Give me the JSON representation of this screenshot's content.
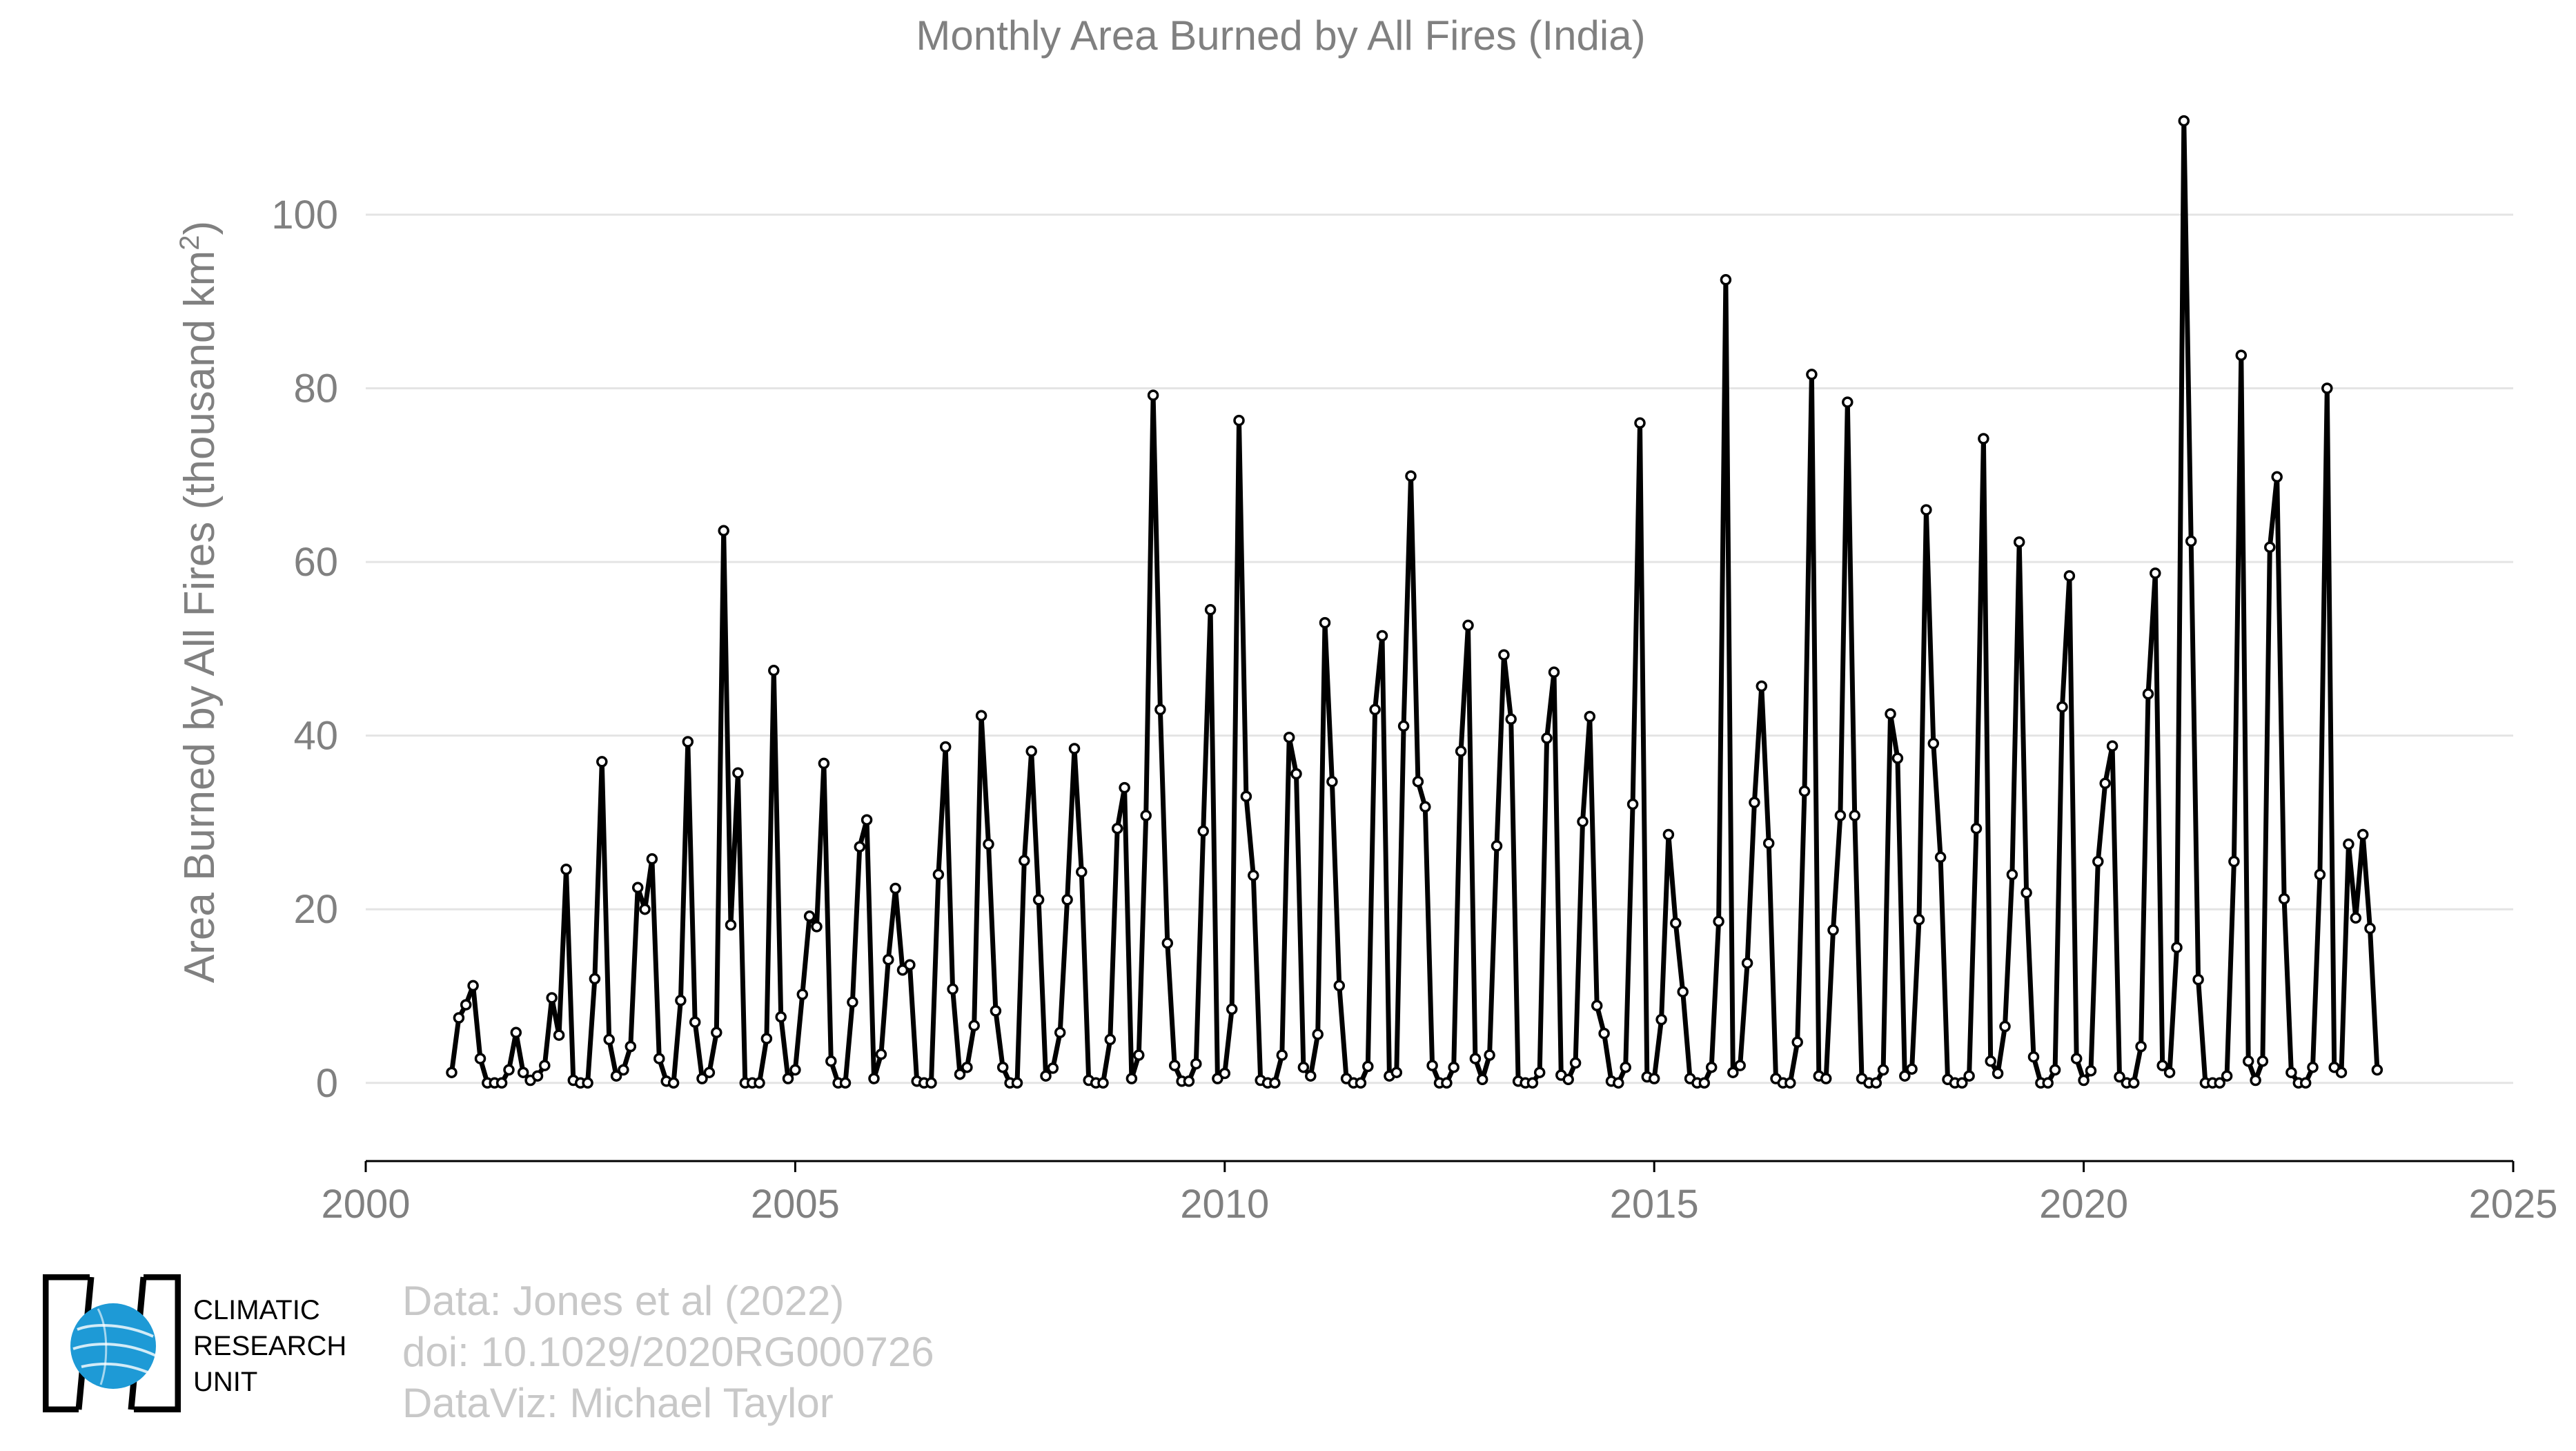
{
  "chart_data": {
    "type": "line",
    "title": "Monthly Area Burned by All Fires (India)",
    "xlabel": "",
    "ylabel": "Area Burned by All Fires (thousand km",
    "ylabel_sup": "2",
    "ylabel_end": ")",
    "xlim": [
      2000,
      2025
    ],
    "ylim": [
      -9,
      112
    ],
    "xticks": [
      2000,
      2005,
      2010,
      2015,
      2020,
      2025
    ],
    "yticks": [
      0,
      20,
      40,
      60,
      80,
      100
    ],
    "grid": "horizontal",
    "line_color": "#000000",
    "marker_fill": "#ffffff",
    "start_year": 2001,
    "values": [
      1.2,
      7.5,
      9,
      11.2,
      2.8,
      0,
      0,
      0,
      1.5,
      5.8,
      1.2,
      0.3,
      0.8,
      2,
      9.8,
      5.5,
      24.6,
      0.3,
      0,
      0,
      12,
      37,
      5,
      0.8,
      1.5,
      4.2,
      22.5,
      20,
      25.8,
      2.8,
      0.2,
      0,
      9.5,
      39.3,
      7,
      0.5,
      1.2,
      5.8,
      63.6,
      18.2,
      35.7,
      0,
      0,
      0,
      5.1,
      47.5,
      7.6,
      0.5,
      1.5,
      10.2,
      19.2,
      18,
      36.8,
      2.5,
      0,
      0,
      9.3,
      27.2,
      30.3,
      0.5,
      3.3,
      14.2,
      22.4,
      13,
      13.6,
      0.2,
      0,
      0,
      24,
      38.7,
      10.8,
      1,
      1.8,
      6.6,
      42.3,
      27.5,
      8.3,
      1.8,
      0,
      0,
      25.6,
      38.2,
      21.1,
      0.8,
      1.7,
      5.8,
      21.1,
      38.5,
      24.3,
      0.3,
      0,
      0,
      5,
      29.3,
      34,
      0.5,
      3.2,
      30.8,
      79.2,
      43,
      16.1,
      2,
      0.2,
      0.2,
      2.2,
      29,
      54.5,
      0.5,
      1.1,
      8.5,
      76.3,
      33,
      23.9,
      0.3,
      0,
      0,
      3.2,
      39.8,
      35.6,
      1.8,
      0.8,
      5.6,
      53,
      34.7,
      11.2,
      0.5,
      0,
      0,
      1.9,
      43,
      51.5,
      0.8,
      1.2,
      41.1,
      69.9,
      34.7,
      31.8,
      2,
      0,
      0,
      1.8,
      38.2,
      52.7,
      2.8,
      0.4,
      3.2,
      27.3,
      49.3,
      41.9,
      0.2,
      0,
      0,
      1.2,
      39.7,
      47.3,
      0.9,
      0.4,
      2.3,
      30.1,
      42.2,
      8.9,
      5.7,
      0.2,
      0,
      1.8,
      32.1,
      76,
      0.7,
      0.5,
      7.3,
      28.6,
      18.4,
      10.5,
      0.5,
      0,
      0,
      1.8,
      18.6,
      92.5,
      1.2,
      2,
      13.8,
      32.3,
      45.7,
      27.6,
      0.5,
      0,
      0,
      4.7,
      33.6,
      81.6,
      0.8,
      0.5,
      17.6,
      30.8,
      78.4,
      30.8,
      0.5,
      0,
      0,
      1.5,
      42.5,
      37.4,
      0.8,
      1.6,
      18.8,
      66,
      39.1,
      26,
      0.4,
      0,
      0,
      0.8,
      29.3,
      74.2,
      2.5,
      1.1,
      6.5,
      24,
      62.3,
      21.9,
      3,
      0,
      0,
      1.5,
      43.3,
      58.4,
      2.8,
      0.3,
      1.4,
      25.5,
      34.5,
      38.8,
      0.7,
      0,
      0,
      4.2,
      44.8,
      58.7,
      2,
      1.2,
      15.6,
      110.8,
      62.4,
      11.9,
      0,
      0,
      0,
      0.8,
      25.5,
      83.8,
      2.5,
      0.3,
      2.5,
      61.7,
      69.8,
      21.2,
      1.2,
      0,
      0,
      1.8,
      24,
      80,
      1.8,
      1.2,
      27.5,
      19,
      28.6,
      17.8,
      1.5
    ]
  },
  "footer": {
    "credit_lines": [
      "Data: Jones et al (2022)",
      "doi: 10.1029/2020RG000726",
      "DataViz: Michael Taylor"
    ]
  },
  "logo": {
    "text_lines": [
      "CLIMATIC",
      "RESEARCH",
      "UNIT"
    ],
    "globe_color": "#1e9ad6"
  }
}
